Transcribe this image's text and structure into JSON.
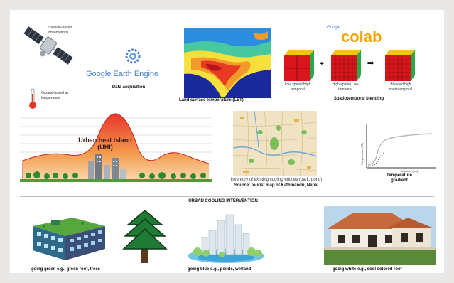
{
  "acquisition": {
    "satellite_label": "Satellite-based observations",
    "ground_label": "Ground-based air temperature",
    "gee_brand": "Google Earth Engine",
    "caption": "Data acquisition"
  },
  "lst": {
    "caption": "Land surface temperature (LST)"
  },
  "blending": {
    "colab_google": "Google",
    "colab_word": "colab",
    "cube1_label": "Low spatial High temporal",
    "plus": "+",
    "cube2_label": "High spatial Low temporal",
    "arrow": "➡",
    "cube3_label": "Blended high spatiotemporal",
    "caption": "Spatiotemporal blending"
  },
  "uhi": {
    "label": "Urban heat island (UHI)"
  },
  "inventory": {
    "caption": "Inventory of existing cooling entities (park, pond)",
    "source": "Source: tourist map of Kathmandu, Nepal"
  },
  "gradient": {
    "ylabel": "Temperature (°C)",
    "xlabel": "Distance (km)",
    "caption": "Temperature gradient"
  },
  "section_title": "URBAN COOLING INTERVENTION",
  "interventions": {
    "green": "going green e.g., green roof, trees",
    "blue": "going blue e.g., ponds, wetland",
    "white": "going white e.g., cool colored roof"
  },
  "colors": {
    "heat_red": "#e8352a",
    "heat_orange": "#f39a4c",
    "gee_blue": "#4a7fd4",
    "colab_orange": "#f4a300"
  }
}
